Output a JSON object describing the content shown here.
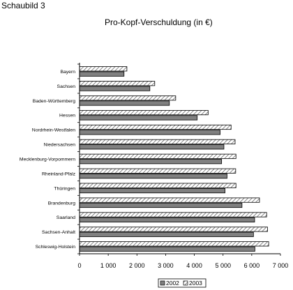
{
  "figure_label": "Schaubild 3",
  "chart_data": {
    "type": "bar",
    "orientation": "horizontal",
    "title": "Pro-Kopf-Verschuldung (in €)",
    "categories": [
      "Bayern",
      "Sachsen",
      "Baden-Württemberg",
      "Hessen",
      "Nordrhein-Westfalen",
      "Niedersachsen",
      "Mecklenburg-Vorpommern",
      "Rheinland-Pfalz",
      "Thüringen",
      "Brandenburg",
      "Saarland",
      "Sachsen-Anhalt",
      "Schleswig-Holstein"
    ],
    "series": [
      {
        "name": "2003",
        "color": "#ffffff",
        "pattern": "diagonal-hatch",
        "values": [
          1650,
          2620,
          3350,
          4480,
          5280,
          5420,
          5450,
          5440,
          5450,
          6270,
          6520,
          6550,
          6590
        ]
      },
      {
        "name": "2002",
        "color": "#808080",
        "values": [
          1550,
          2450,
          3130,
          4100,
          4900,
          5030,
          4950,
          5140,
          5070,
          5660,
          6100,
          6060,
          6110
        ]
      }
    ],
    "xlim": [
      0,
      7000
    ],
    "xticks": [
      "0",
      "1 000",
      "2 000",
      "3 000",
      "4 000",
      "5 000",
      "6 000",
      "7 000"
    ],
    "grid": false,
    "legend": {
      "position": "bottom",
      "items": [
        "2002",
        "2003"
      ]
    }
  }
}
